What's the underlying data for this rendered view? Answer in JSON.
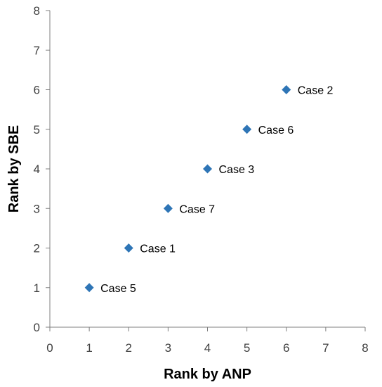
{
  "chart_data": {
    "type": "scatter",
    "title": "",
    "xlabel": "Rank by ANP",
    "ylabel": "Rank by SBE",
    "xlim": [
      0,
      8
    ],
    "ylim": [
      0,
      8
    ],
    "xticks": [
      "0",
      "1",
      "2",
      "3",
      "4",
      "5",
      "6",
      "7",
      "8"
    ],
    "yticks": [
      "0",
      "1",
      "2",
      "3",
      "4",
      "5",
      "6",
      "7",
      "8"
    ],
    "grid": false,
    "legend": "none",
    "marker": "diamond",
    "marker_color": "#2E75B6",
    "axis_color": "#7F7F7F",
    "points": [
      {
        "x": 1,
        "y": 1,
        "label": "Case 5"
      },
      {
        "x": 2,
        "y": 2,
        "label": "Case 1"
      },
      {
        "x": 3,
        "y": 3,
        "label": "Case 7"
      },
      {
        "x": 4,
        "y": 4,
        "label": "Case 3"
      },
      {
        "x": 5,
        "y": 5,
        "label": "Case 6"
      },
      {
        "x": 6,
        "y": 6,
        "label": "Case 2"
      }
    ]
  }
}
